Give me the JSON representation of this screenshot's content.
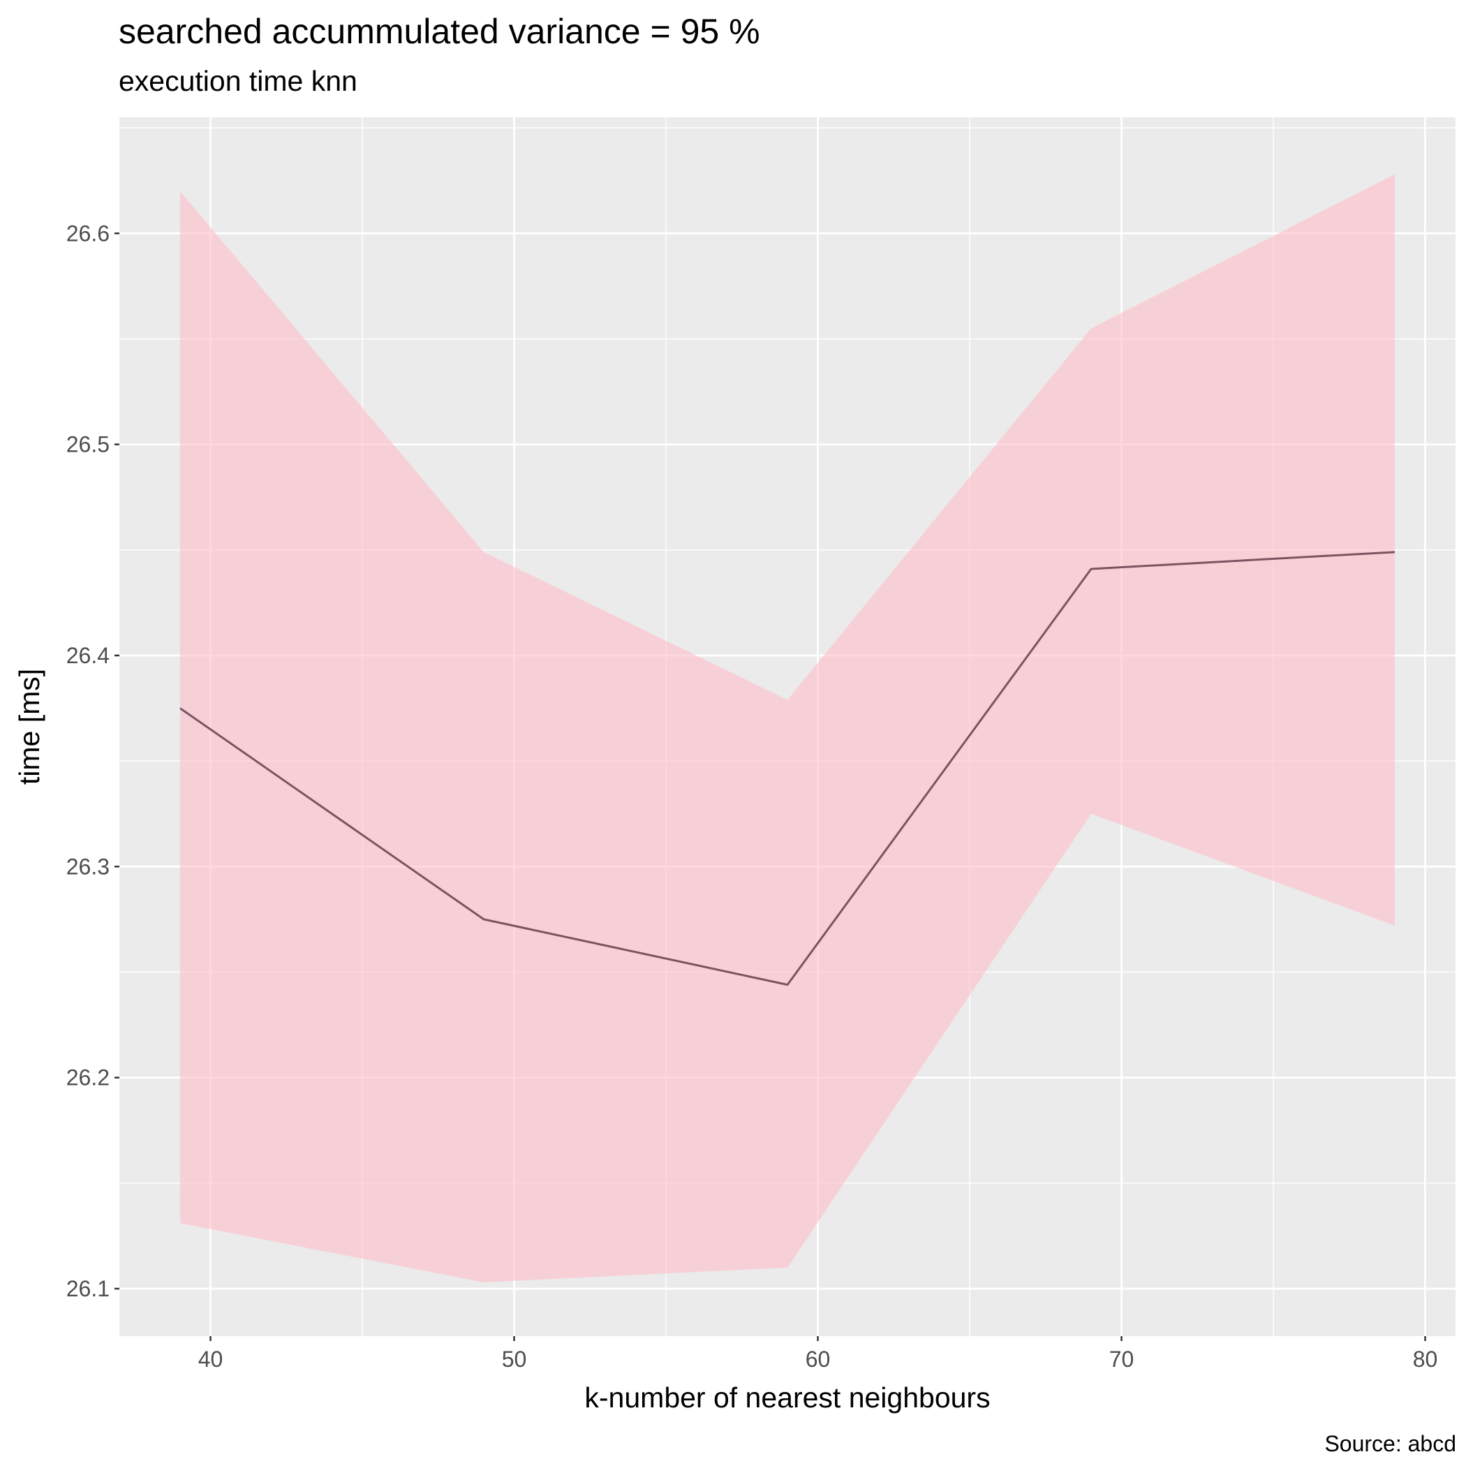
{
  "chart_data": {
    "type": "line",
    "title": "searched accummulated variance =  95 %",
    "subtitle": "execution time knn",
    "xlabel": "k-number of nearest neighbours",
    "ylabel": "time [ms]",
    "caption": "Source: abcd",
    "xlim": [
      37,
      81
    ],
    "ylim": [
      26.0775,
      26.655
    ],
    "x_ticks": [
      40,
      50,
      60,
      70,
      80
    ],
    "y_ticks": [
      26.1,
      26.2,
      26.3,
      26.4,
      26.5,
      26.6
    ],
    "x_tick_labels": [
      "40",
      "50",
      "60",
      "70",
      "80"
    ],
    "y_tick_labels": [
      "26.1",
      "26.2",
      "26.3",
      "26.4",
      "26.5",
      "26.6"
    ],
    "grid": true,
    "series": [
      {
        "x": [
          39,
          49,
          59,
          69,
          79
        ],
        "y": [
          26.375,
          26.275,
          26.244,
          26.441,
          26.449
        ],
        "ymin": [
          26.131,
          26.103,
          26.11,
          26.325,
          26.272
        ],
        "ymax": [
          26.62,
          26.449,
          26.379,
          26.555,
          26.628
        ]
      }
    ],
    "colors": {
      "panel": "#ebebeb",
      "grid": "#ffffff",
      "line": "#7b5461",
      "ribbon": "#ffc0cb"
    }
  }
}
